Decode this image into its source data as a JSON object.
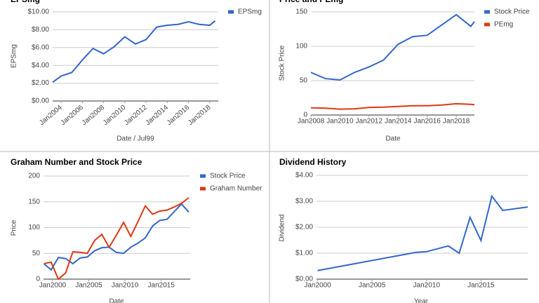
{
  "chart_data": [
    {
      "type": "line",
      "title": "EPSmg",
      "x_label": "Date / Jul99",
      "y_label": "EPSmg",
      "grid": true,
      "legend": "right",
      "x": [
        2003.2,
        2004,
        2005,
        2006,
        2007,
        2008,
        2009,
        2010,
        2011,
        2012,
        2013,
        2014,
        2015,
        2016,
        2017,
        2018,
        2018.5
      ],
      "series": [
        {
          "name": "EPSmg",
          "color": "#3366cc",
          "values": [
            2.1,
            2.8,
            3.2,
            4.6,
            5.9,
            5.3,
            6.1,
            7.2,
            6.4,
            6.9,
            8.3,
            8.5,
            8.6,
            8.9,
            8.6,
            8.5,
            9.0
          ]
        }
      ],
      "xlim": [
        2003.2,
        2018.8
      ],
      "xticks": [
        {
          "value": 2004,
          "label": "Jan2004"
        },
        {
          "value": 2006,
          "label": "Jan2006"
        },
        {
          "value": 2008,
          "label": "Jan2008"
        },
        {
          "value": 2010,
          "label": "Jan2010"
        },
        {
          "value": 2012,
          "label": "Jan2012"
        },
        {
          "value": 2014,
          "label": "Jan2014"
        },
        {
          "value": 2016,
          "label": "Jan2016"
        },
        {
          "value": 2018,
          "label": "Jan2018"
        }
      ],
      "ylim": [
        0,
        10
      ],
      "yticks": [
        {
          "value": 0,
          "label": "$0.00"
        },
        {
          "value": 2,
          "label": "$2.00"
        },
        {
          "value": 4,
          "label": "$4.00"
        },
        {
          "value": 6,
          "label": "$6.00"
        },
        {
          "value": 8,
          "label": "$8.00"
        },
        {
          "value": 10,
          "label": "$10.00"
        }
      ]
    },
    {
      "type": "line",
      "title": "Price and PEmg",
      "x_label": "Date",
      "y_label": "Stock Price",
      "grid": true,
      "legend": "right",
      "x": [
        2008,
        2009,
        2010,
        2011,
        2012,
        2013,
        2014,
        2015,
        2016,
        2017,
        2018,
        2019,
        2019.25
      ],
      "series": [
        {
          "name": "Stock Price",
          "color": "#3366cc",
          "values": [
            62,
            53,
            51,
            62,
            70,
            80,
            103,
            114,
            116,
            131,
            146,
            129,
            136
          ]
        },
        {
          "name": "PEmg",
          "color": "#dc3912",
          "values": [
            10.5,
            10,
            8.5,
            9,
            11,
            11.5,
            12.5,
            13.5,
            13.5,
            14.5,
            16.5,
            15.5,
            15
          ]
        }
      ],
      "xlim": [
        2008,
        2019.25
      ],
      "xticks": [
        {
          "value": 2008,
          "label": "Jan2008"
        },
        {
          "value": 2010,
          "label": "Jan2010"
        },
        {
          "value": 2012,
          "label": "Jan2012"
        },
        {
          "value": 2014,
          "label": "Jan2014"
        },
        {
          "value": 2016,
          "label": "Jan2016"
        },
        {
          "value": 2018,
          "label": "Jan2018"
        }
      ],
      "ylim": [
        0,
        150
      ],
      "yticks": [
        0,
        50,
        100,
        150
      ]
    },
    {
      "type": "line",
      "title": "Graham Number and Stock Price",
      "x_label": "Date",
      "y_label": "Price",
      "grid": true,
      "legend": "right",
      "x": [
        1998.8,
        1999.8,
        2000.8,
        2001.8,
        2002.8,
        2003.8,
        2004.8,
        2005.8,
        2006.8,
        2007.8,
        2008.8,
        2009.8,
        2010.8,
        2011.8,
        2012.8,
        2013.8,
        2014.8,
        2015.8,
        2016.8,
        2017.8,
        2018.8
      ],
      "series": [
        {
          "name": "Stock Price",
          "color": "#3366cc",
          "values": [
            30,
            18,
            42,
            40,
            30,
            41,
            43,
            55,
            61,
            62,
            52,
            50,
            62,
            70,
            80,
            103,
            114,
            116,
            131,
            146,
            130
          ]
        },
        {
          "name": "Graham Number",
          "color": "#dc3912",
          "values": [
            30,
            33,
            0,
            12,
            53,
            52,
            50,
            75,
            87,
            62,
            85,
            110,
            83,
            112,
            142,
            126,
            132,
            134,
            140,
            147,
            158
          ]
        }
      ],
      "xlim": [
        1998.75,
        2019
      ],
      "xticks": [
        {
          "value": 2000,
          "label": "Jan2000"
        },
        {
          "value": 2005,
          "label": "Jan2005"
        },
        {
          "value": 2010,
          "label": "Jan2010"
        },
        {
          "value": 2015,
          "label": "Jan2015"
        }
      ],
      "ylim": [
        0,
        200
      ],
      "yticks": [
        0,
        50,
        100,
        150,
        200
      ]
    },
    {
      "type": "line",
      "title": "Dividend History",
      "x_label": "Year",
      "y_label": "Dividend",
      "grid": true,
      "x": [
        2000,
        2009,
        2010,
        2012,
        2013,
        2014,
        2015,
        2016,
        2017,
        2019.3
      ],
      "series": [
        {
          "color": "#3366cc",
          "values": [
            0.33,
            1.03,
            1.06,
            1.28,
            1.0,
            2.38,
            1.49,
            3.2,
            2.65,
            2.78
          ]
        }
      ],
      "xlim": [
        1999.9,
        2019.3
      ],
      "xticks": [
        {
          "value": 2000,
          "label": "Jan2000"
        },
        {
          "value": 2005,
          "label": "Jan2005"
        },
        {
          "value": 2010,
          "label": "Jan2010"
        },
        {
          "value": 2015,
          "label": "Jan2015"
        }
      ],
      "ylim": [
        0,
        4
      ],
      "yticks": [
        {
          "value": 0,
          "label": "$0.00"
        },
        {
          "value": 1,
          "label": "$1.00"
        },
        {
          "value": 2,
          "label": "$2.00"
        },
        {
          "value": 3,
          "label": "$3.00"
        },
        {
          "value": 4,
          "label": "$4.00"
        }
      ]
    }
  ]
}
